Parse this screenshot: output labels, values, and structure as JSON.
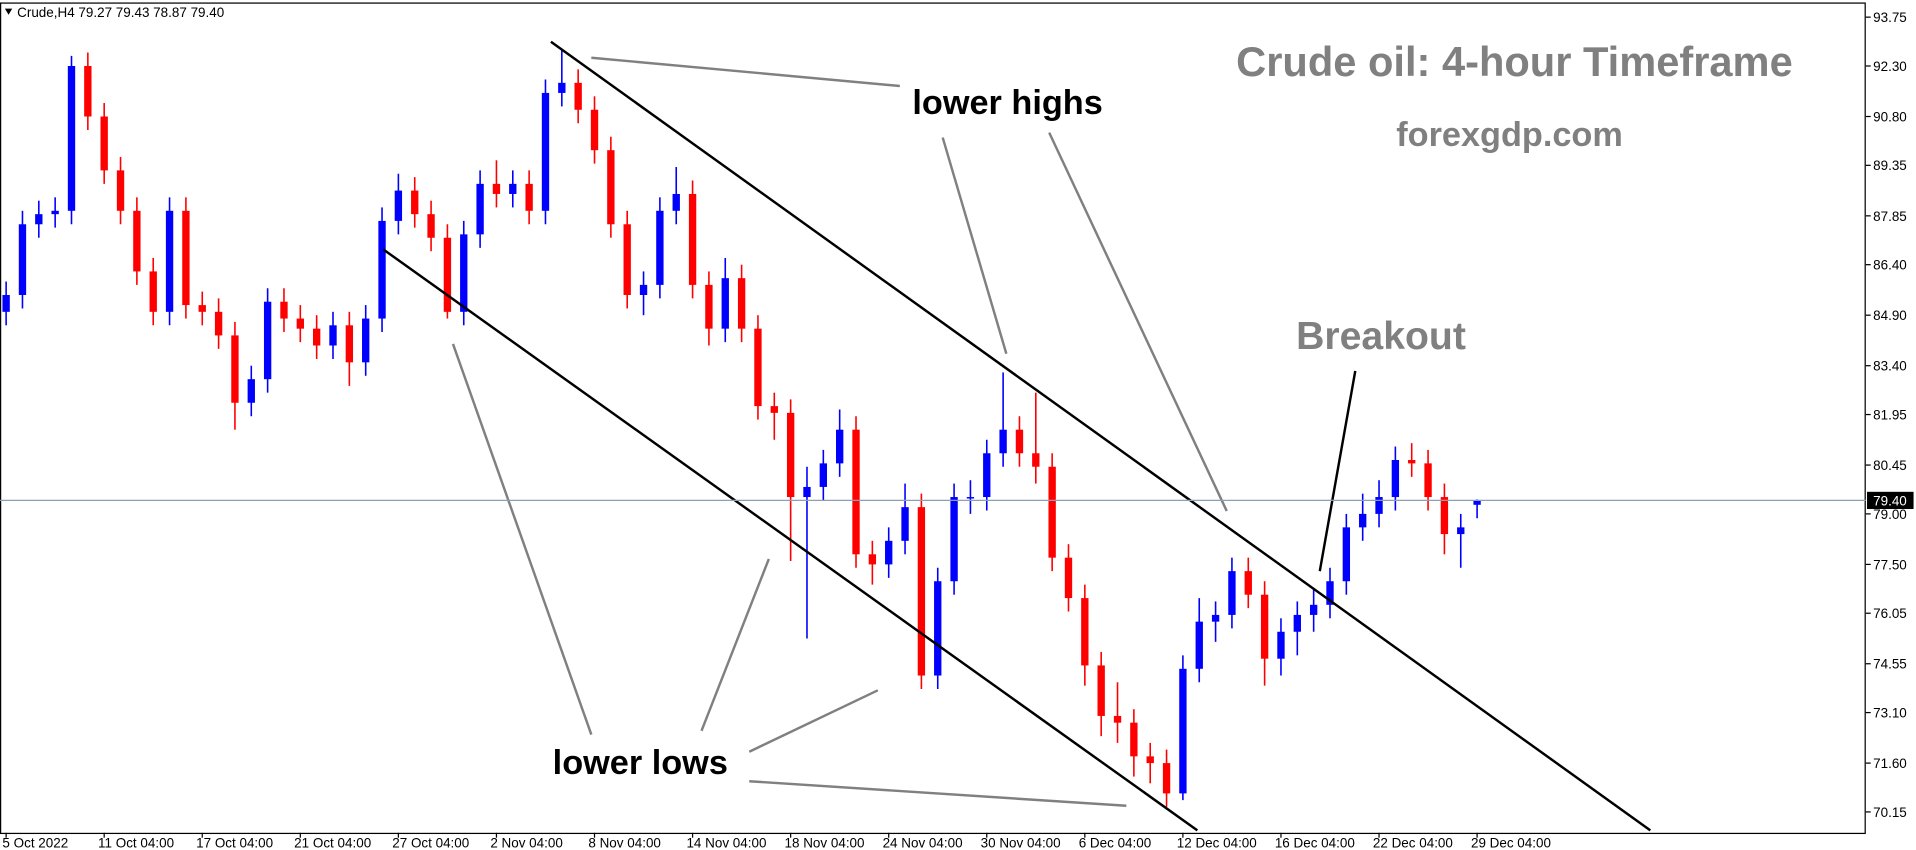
{
  "chart_data": {
    "type": "candlestick",
    "header": "Crude,H4  79.27 79.43 78.87 79.40",
    "title": "Crude oil: 4-hour Timeframe",
    "subtitle": "forexgdp.com",
    "annotations": [
      "lower highs",
      "Breakout",
      "lower lows"
    ],
    "up_color": "#0000ff",
    "down_color": "#ff0000",
    "categories": [
      "5 Oct 2022",
      null,
      null,
      null,
      null,
      null,
      "11 Oct 04:00",
      null,
      null,
      null,
      null,
      null,
      "17 Oct 04:00",
      null,
      null,
      null,
      null,
      null,
      "21 Oct 04:00",
      null,
      null,
      null,
      null,
      null,
      "27 Oct 04:00",
      null,
      null,
      null,
      null,
      null,
      "2 Nov 04:00",
      null,
      null,
      null,
      null,
      null,
      "8 Nov 04:00",
      null,
      null,
      null,
      null,
      null,
      "14 Nov 04:00",
      null,
      null,
      null,
      null,
      null,
      "18 Nov 04:00",
      null,
      null,
      null,
      null,
      null,
      "24 Nov 04:00",
      null,
      null,
      null,
      null,
      null,
      "30 Nov 04:00",
      null,
      null,
      null,
      null,
      null,
      "6 Dec 04:00",
      null,
      null,
      null,
      null,
      null,
      "12 Dec 04:00",
      null,
      null,
      null,
      null,
      null,
      "16 Dec 04:00",
      null,
      null,
      null,
      null,
      null,
      "22 Dec 04:00",
      null,
      null,
      null,
      null,
      null,
      "29 Dec 04:00"
    ],
    "open": [
      85.0,
      85.5,
      87.6,
      87.9,
      88.0,
      92.3,
      90.8,
      89.2,
      88.0,
      86.2,
      85.0,
      88.0,
      85.2,
      85.0,
      84.3,
      82.3,
      83.0,
      85.3,
      84.8,
      84.5,
      84.0,
      84.6,
      83.5,
      84.8,
      87.7,
      88.6,
      87.9,
      87.2,
      85.0,
      87.3,
      88.8,
      88.5,
      88.8,
      88.0,
      91.5,
      91.8,
      91.0,
      89.8,
      87.6,
      85.5,
      85.8,
      88.0,
      88.5,
      85.8,
      84.5,
      86.0,
      84.5,
      82.2,
      82.0,
      79.5,
      79.8,
      80.5,
      81.5,
      77.8,
      77.5,
      78.2,
      79.2,
      74.2,
      77.0,
      79.5,
      79.5,
      80.8,
      81.5,
      80.8,
      80.4,
      77.7,
      76.5,
      74.5,
      73.0,
      72.8,
      71.8,
      71.6,
      70.7,
      74.4,
      75.8,
      76.0,
      77.3,
      76.6,
      74.7,
      75.5,
      76.0,
      76.3,
      77.0,
      78.6,
      79.0,
      79.5,
      80.6,
      80.5,
      79.5,
      78.4,
      79.27
    ],
    "high": [
      85.9,
      88.0,
      88.3,
      88.4,
      92.6,
      92.7,
      91.2,
      89.6,
      88.4,
      86.6,
      88.4,
      88.4,
      85.6,
      85.4,
      84.7,
      83.4,
      85.7,
      85.7,
      85.2,
      84.9,
      85.0,
      85.0,
      85.2,
      88.1,
      89.1,
      89.0,
      88.3,
      87.6,
      87.7,
      89.2,
      89.5,
      89.2,
      89.2,
      91.9,
      92.8,
      92.2,
      91.4,
      90.2,
      88.0,
      86.2,
      88.4,
      89.3,
      88.9,
      86.2,
      86.6,
      86.4,
      84.9,
      82.6,
      82.4,
      80.4,
      80.9,
      82.1,
      81.9,
      78.2,
      78.6,
      79.9,
      79.6,
      77.4,
      79.9,
      80.0,
      81.2,
      83.2,
      81.9,
      82.6,
      80.8,
      78.1,
      76.9,
      74.9,
      74.0,
      73.2,
      72.2,
      72.0,
      74.8,
      76.5,
      76.4,
      77.7,
      77.7,
      77.0,
      75.9,
      76.4,
      76.8,
      77.4,
      79.0,
      79.6,
      80.0,
      81.0,
      81.1,
      80.9,
      79.9,
      79.0,
      79.43
    ],
    "low": [
      84.6,
      85.1,
      87.2,
      87.5,
      87.6,
      90.4,
      88.8,
      87.6,
      85.8,
      84.6,
      84.6,
      84.8,
      84.6,
      83.9,
      81.5,
      81.9,
      82.6,
      84.4,
      84.1,
      83.6,
      83.6,
      82.8,
      83.1,
      84.4,
      87.3,
      87.5,
      86.8,
      84.8,
      84.6,
      86.9,
      88.1,
      88.1,
      87.6,
      87.6,
      91.1,
      90.6,
      89.4,
      87.2,
      85.1,
      84.9,
      85.4,
      87.6,
      85.4,
      84.0,
      84.1,
      84.1,
      81.8,
      81.2,
      77.6,
      75.3,
      79.4,
      80.1,
      77.4,
      76.9,
      77.1,
      77.8,
      73.8,
      73.8,
      76.6,
      79.0,
      79.1,
      80.4,
      80.4,
      79.9,
      77.3,
      76.1,
      73.9,
      72.4,
      72.2,
      71.2,
      71.0,
      70.3,
      70.5,
      74.0,
      75.2,
      75.6,
      76.2,
      73.9,
      74.2,
      74.8,
      75.5,
      75.9,
      76.6,
      78.2,
      78.6,
      79.1,
      80.1,
      79.1,
      77.8,
      77.4,
      78.87
    ],
    "close": [
      85.5,
      87.6,
      87.9,
      88.0,
      92.3,
      90.8,
      89.2,
      88.0,
      86.2,
      85.0,
      88.0,
      85.2,
      85.0,
      84.3,
      82.3,
      83.0,
      85.3,
      84.8,
      84.5,
      84.0,
      84.6,
      83.5,
      84.8,
      87.7,
      88.6,
      87.9,
      87.2,
      85.0,
      87.3,
      88.8,
      88.5,
      88.8,
      88.0,
      91.5,
      91.8,
      91.0,
      89.8,
      87.6,
      85.5,
      85.8,
      88.0,
      88.5,
      85.8,
      84.5,
      86.0,
      84.5,
      82.2,
      82.0,
      79.5,
      79.8,
      80.5,
      81.5,
      77.8,
      77.5,
      78.2,
      79.2,
      74.2,
      77.0,
      79.5,
      79.5,
      80.8,
      81.5,
      80.8,
      80.4,
      77.7,
      76.5,
      74.5,
      73.0,
      72.8,
      71.8,
      71.6,
      70.7,
      74.4,
      75.8,
      76.0,
      77.3,
      76.6,
      74.7,
      75.5,
      76.0,
      76.3,
      77.0,
      78.6,
      79.0,
      79.5,
      80.6,
      80.5,
      79.5,
      78.4,
      78.6,
      79.4
    ],
    "current_price": {
      "value": 79.4,
      "label": "79.40"
    },
    "ylim": [
      69.53,
      94.15
    ],
    "yticks": [
      93.75,
      {
        "value": 92.3,
        "label": "92.30"
      },
      {
        "value": 90.8,
        "label": "90.80"
      },
      89.35,
      87.85,
      {
        "value": 86.4,
        "label": "86.40"
      },
      {
        "value": 84.9,
        "label": "84.90"
      },
      {
        "value": 83.4,
        "label": "83.40"
      },
      81.95,
      80.45,
      {
        "value": 79.0,
        "label": "79.00"
      },
      {
        "value": 77.5,
        "label": "77.50"
      },
      76.05,
      74.55,
      {
        "value": 73.1,
        "label": "73.10"
      },
      {
        "value": 71.6,
        "label": "71.60"
      },
      70.15
    ]
  }
}
